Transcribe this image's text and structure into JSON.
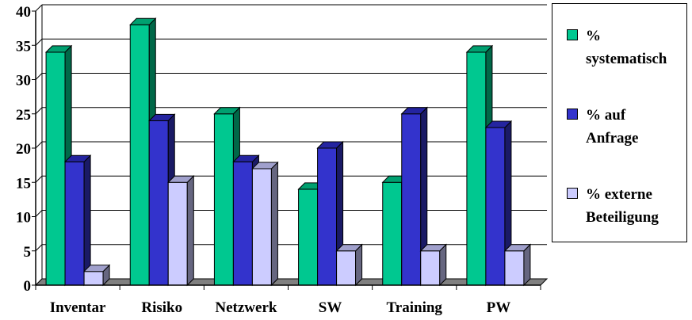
{
  "chart_data": {
    "type": "bar",
    "style": "3d-clustered-column",
    "categories": [
      "Inventar",
      "Risiko",
      "Netzwerk",
      "SW",
      "Training",
      "PW"
    ],
    "series": [
      {
        "name": "% systematisch",
        "label_lines": [
          "%",
          "systematisch"
        ],
        "color": "#00C890",
        "side_color": "#006848",
        "top_color": "#00A070",
        "values": [
          34,
          38,
          25,
          14,
          15,
          34
        ]
      },
      {
        "name": "% auf Anfrage",
        "label_lines": [
          "% auf",
          "Anfrage"
        ],
        "color": "#3333CC",
        "side_color": "#1A1A66",
        "top_color": "#2424A0",
        "values": [
          18,
          24,
          18,
          20,
          25,
          23
        ]
      },
      {
        "name": "% externe Beteiligung",
        "label_lines": [
          "% externe",
          "Beteiligung"
        ],
        "color": "#CCCCFF",
        "side_color": "#666680",
        "top_color": "#A0A0CC",
        "values": [
          2,
          15,
          17,
          5,
          5,
          5
        ]
      }
    ],
    "ylim": [
      0,
      40
    ],
    "yticks": [
      "0",
      "5",
      "10",
      "15",
      "20",
      "25",
      "30",
      "35",
      "40"
    ],
    "grid": true,
    "legend_position": "right",
    "title": "",
    "xlabel": "",
    "ylabel": ""
  }
}
